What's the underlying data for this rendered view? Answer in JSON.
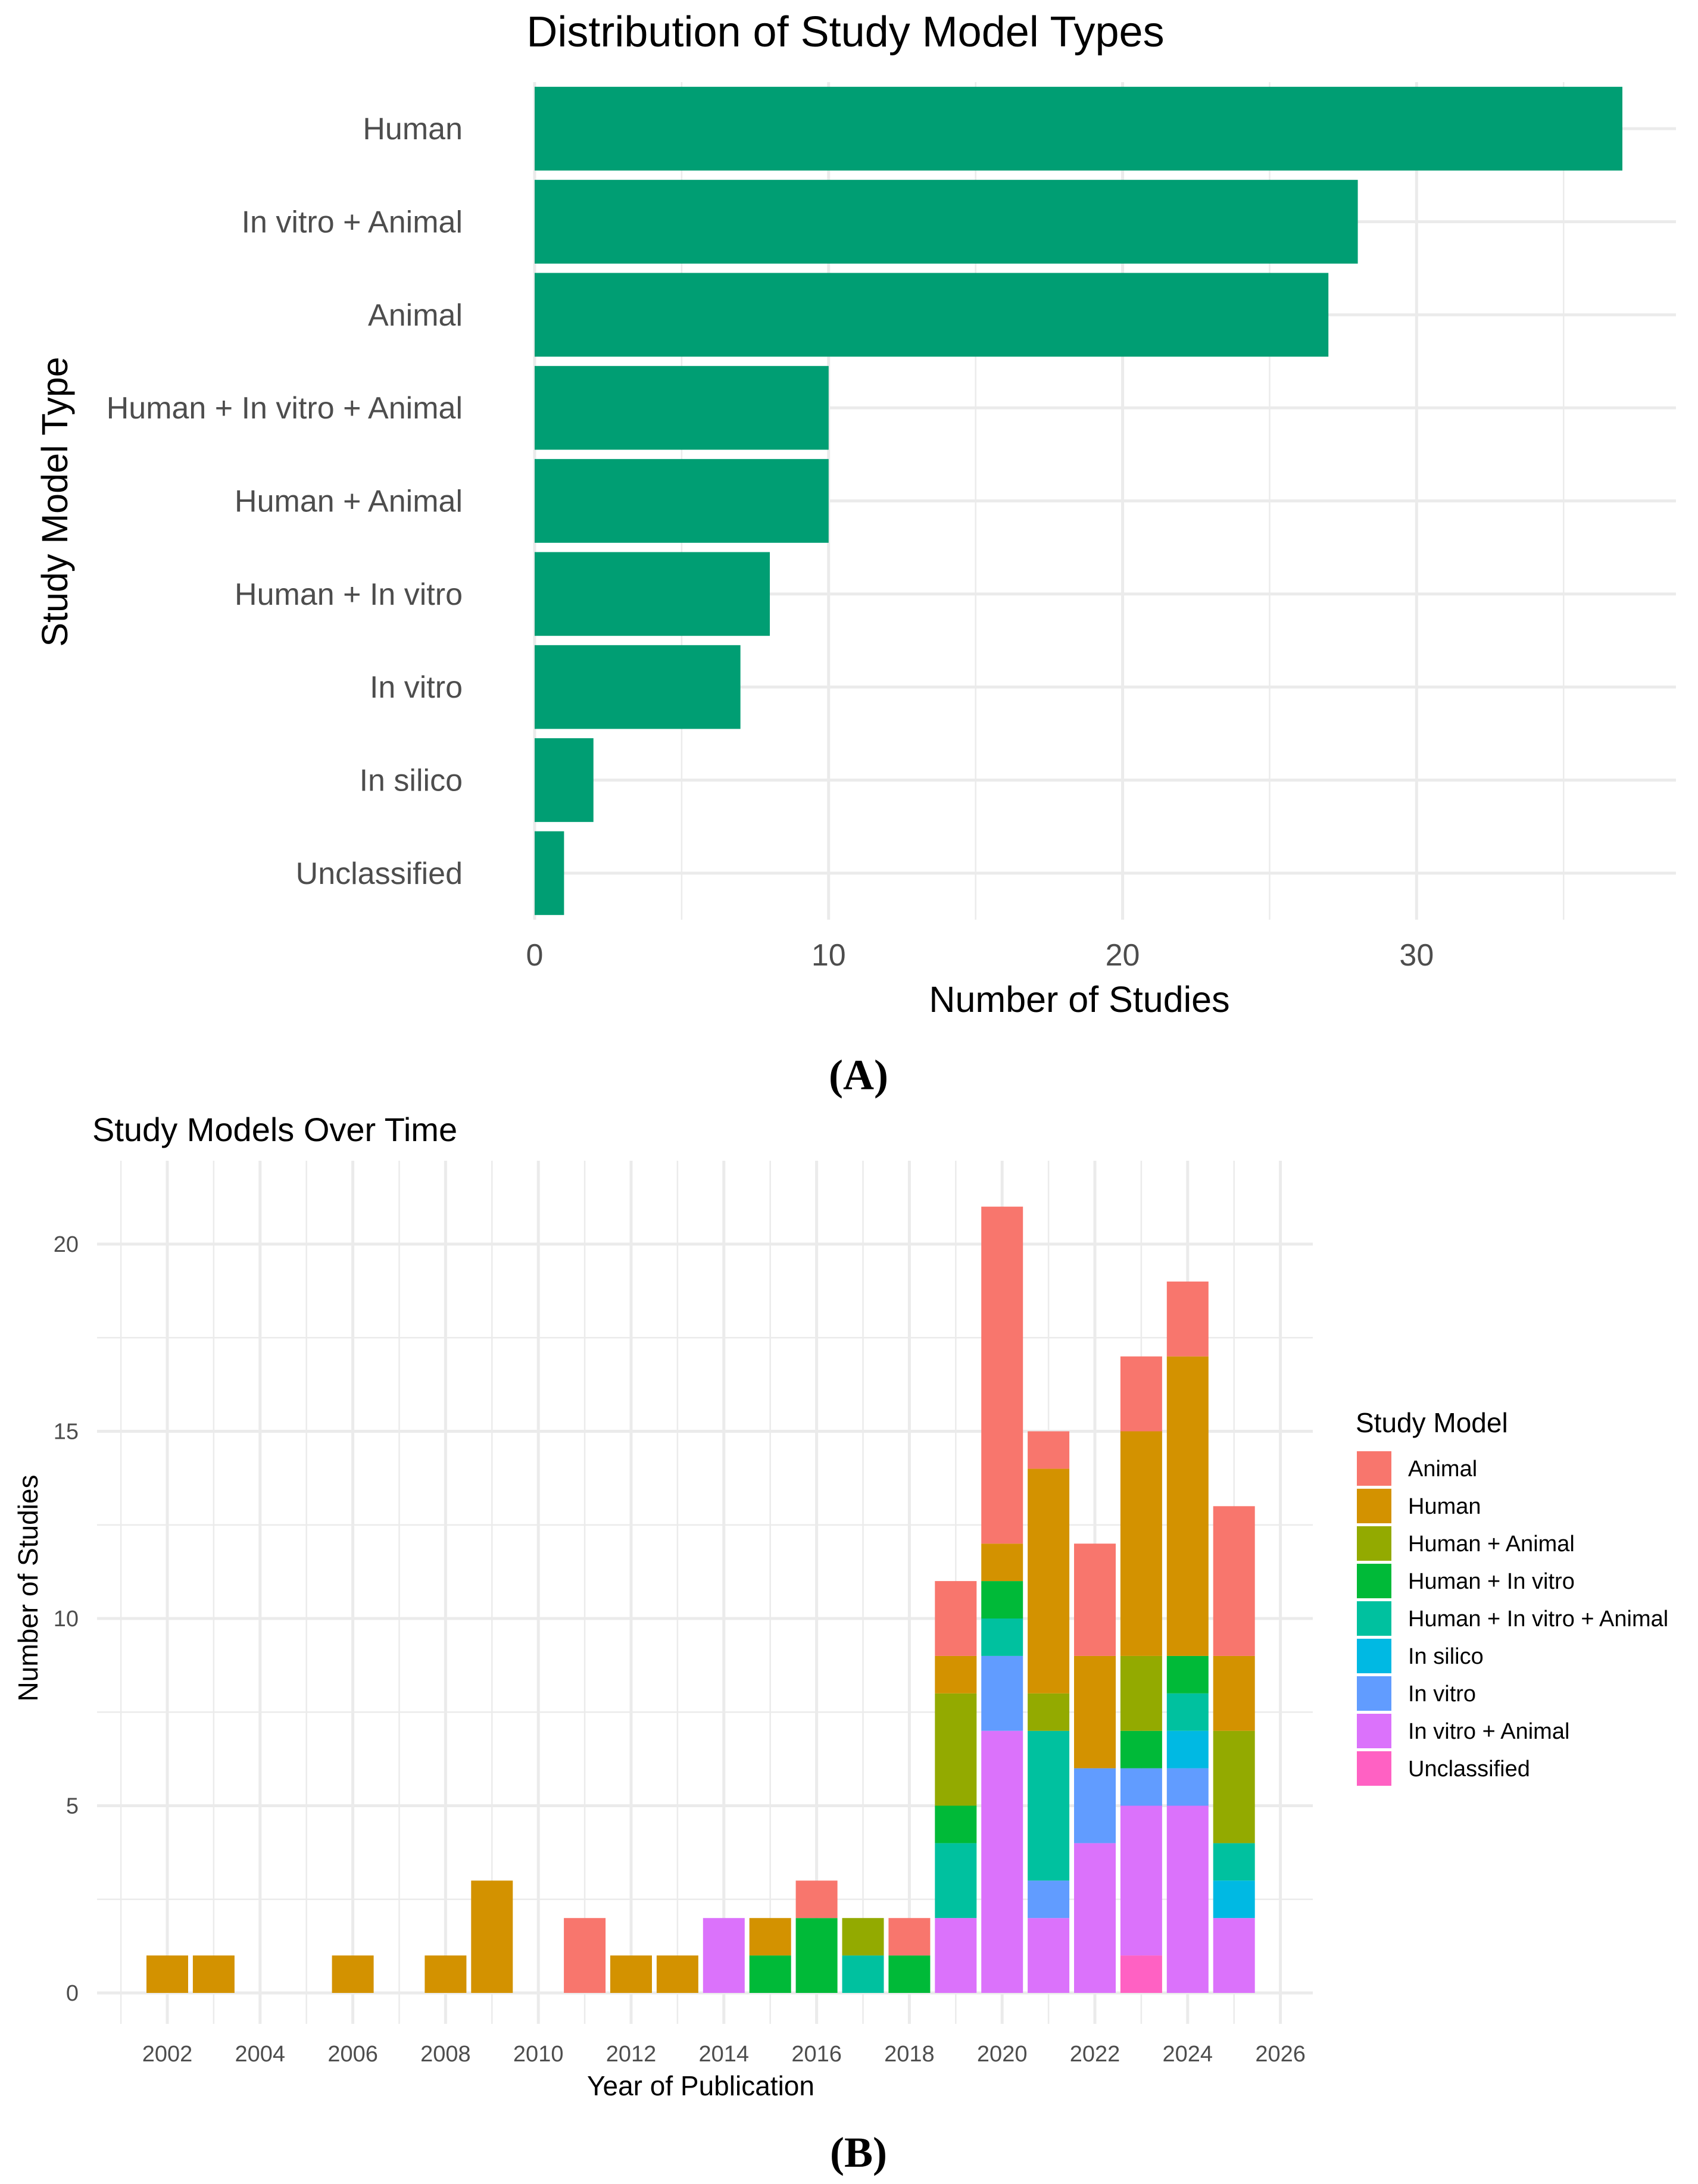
{
  "panel_a_label": "(A)",
  "panel_b_label": "(B)",
  "chart_data": [
    {
      "type": "bar",
      "orientation": "horizontal",
      "title": "Distribution of Study Model Types",
      "xlabel": "Number of Studies",
      "ylabel": "Study Model Type",
      "categories": [
        "Human",
        "In vitro + Animal",
        "Animal",
        "Human + In vitro + Animal",
        "Human + Animal",
        "Human + In vitro",
        "In vitro",
        "In silico",
        "Unclassified"
      ],
      "values": [
        37,
        28,
        27,
        10,
        10,
        8,
        7,
        2,
        1
      ],
      "xticks": [
        0,
        10,
        20,
        30
      ],
      "xlim": [
        0,
        38.5
      ],
      "bar_color": "#009E73",
      "grid": true
    },
    {
      "type": "bar",
      "stacked": true,
      "title": "Study Models Over Time",
      "xlabel": "Year of Publication",
      "ylabel": "Number of Studies",
      "xticks": [
        2002,
        2004,
        2006,
        2008,
        2010,
        2012,
        2014,
        2016,
        2018,
        2020,
        2022,
        2024,
        2026
      ],
      "yticks": [
        0,
        5,
        10,
        15,
        20
      ],
      "xlim": [
        2000.5,
        2026.7
      ],
      "ylim": [
        0,
        22.3
      ],
      "grid": true,
      "legend_title": "Study Model",
      "legend_position": "right",
      "series_order": [
        "Animal",
        "Human",
        "Human + Animal",
        "Human + In vitro",
        "Human + In vitro + Animal",
        "In silico",
        "In vitro",
        "In vitro + Animal",
        "Unclassified"
      ],
      "colors": {
        "Animal": "#F8766D",
        "Human": "#D39200",
        "Human + Animal": "#93AA00",
        "Human + In vitro": "#00BA38",
        "Human + In vitro + Animal": "#00C19F",
        "In silico": "#00B9E3",
        "In vitro": "#619CFF",
        "In vitro + Animal": "#DB72FB",
        "Unclassified": "#FF61C3"
      },
      "years": [
        {
          "year": 2002,
          "counts": {
            "Human": 1
          }
        },
        {
          "year": 2003,
          "counts": {
            "Human": 1
          }
        },
        {
          "year": 2006,
          "counts": {
            "Human": 1
          }
        },
        {
          "year": 2008,
          "counts": {
            "Human": 1
          }
        },
        {
          "year": 2009,
          "counts": {
            "Human": 3
          }
        },
        {
          "year": 2011,
          "counts": {
            "Animal": 2
          }
        },
        {
          "year": 2012,
          "counts": {
            "Human": 1
          }
        },
        {
          "year": 2013,
          "counts": {
            "Human": 1
          }
        },
        {
          "year": 2014,
          "counts": {
            "In vitro + Animal": 2
          }
        },
        {
          "year": 2015,
          "counts": {
            "Human": 1,
            "Human + In vitro": 1
          }
        },
        {
          "year": 2016,
          "counts": {
            "Animal": 1,
            "Human + In vitro": 2
          }
        },
        {
          "year": 2017,
          "counts": {
            "Human + Animal": 1,
            "Human + In vitro + Animal": 1
          }
        },
        {
          "year": 2018,
          "counts": {
            "Animal": 1,
            "Human + In vitro": 1
          }
        },
        {
          "year": 2019,
          "counts": {
            "Animal": 2,
            "Human": 1,
            "Human + Animal": 3,
            "Human + In vitro": 1,
            "Human + In vitro + Animal": 2,
            "In vitro + Animal": 2
          }
        },
        {
          "year": 2020,
          "counts": {
            "Animal": 9,
            "Human": 1,
            "Human + In vitro": 1,
            "Human + In vitro + Animal": 1,
            "In vitro": 2,
            "In vitro + Animal": 7
          }
        },
        {
          "year": 2021,
          "counts": {
            "Animal": 1,
            "Human": 6,
            "Human + Animal": 1,
            "Human + In vitro + Animal": 4,
            "In vitro": 1,
            "In vitro + Animal": 2
          }
        },
        {
          "year": 2022,
          "counts": {
            "Animal": 3,
            "Human": 3,
            "In vitro": 2,
            "In vitro + Animal": 4
          }
        },
        {
          "year": 2023,
          "counts": {
            "Animal": 2,
            "Human": 6,
            "Human + Animal": 2,
            "Human + In vitro": 1,
            "In vitro": 1,
            "In vitro + Animal": 4,
            "Unclassified": 1
          }
        },
        {
          "year": 2024,
          "counts": {
            "Animal": 2,
            "Human": 8,
            "Human + In vitro": 1,
            "Human + In vitro + Animal": 1,
            "In silico": 1,
            "In vitro": 1,
            "In vitro + Animal": 5
          }
        },
        {
          "year": 2025,
          "counts": {
            "Animal": 4,
            "Human": 2,
            "Human + Animal": 3,
            "Human + In vitro + Animal": 1,
            "In silico": 1,
            "In vitro + Animal": 2
          }
        }
      ]
    }
  ]
}
